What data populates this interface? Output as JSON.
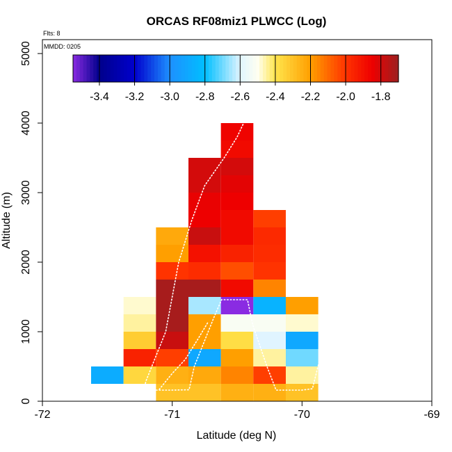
{
  "chart_data": {
    "type": "heatmap",
    "title": "ORCAS RF08miz1 PLWCC (Log)",
    "xlabel": "Latitude (deg N)",
    "ylabel": "Altitude (m)",
    "xlim": [
      -72,
      -69
    ],
    "ylim": [
      0,
      5200
    ],
    "xticks": [
      -72,
      -71,
      -70,
      -69
    ],
    "yticks": [
      0,
      1000,
      2000,
      3000,
      4000,
      5000
    ],
    "annotations": {
      "flights": "Flts: 8",
      "date": "MMDD: 0205"
    },
    "colorbar": {
      "range": [
        -3.55,
        -1.7
      ],
      "ticks": [
        -3.4,
        -3.2,
        -3.0,
        -2.8,
        -2.6,
        -2.4,
        -2.2,
        -2.0,
        -1.8
      ],
      "tick_labels": [
        "-3.4",
        "-3.2",
        "-3.0",
        "-2.8",
        "-2.6",
        "-2.4",
        "-2.2",
        "-2.0",
        "-1.8"
      ],
      "stops": [
        {
          "v": -3.55,
          "c": "#8a2be2"
        },
        {
          "v": -3.4,
          "c": "#00008b"
        },
        {
          "v": -3.2,
          "c": "#0000cd"
        },
        {
          "v": -3.0,
          "c": "#1e90ff"
        },
        {
          "v": -2.8,
          "c": "#00bfff"
        },
        {
          "v": -2.6,
          "c": "#e0f4ff"
        },
        {
          "v": -2.5,
          "c": "#fffff0"
        },
        {
          "v": -2.4,
          "c": "#ffe54d"
        },
        {
          "v": -2.2,
          "c": "#ff9f00"
        },
        {
          "v": -2.0,
          "c": "#ff3300"
        },
        {
          "v": -1.85,
          "c": "#ee0000"
        },
        {
          "v": -1.7,
          "c": "#9c2020"
        }
      ]
    },
    "cell_width_deg": 0.25,
    "cell_height_m": 250,
    "cells": [
      {
        "lat": -71.5,
        "alt": 250,
        "v": -2.88
      },
      {
        "lat": -71.25,
        "alt": 250,
        "v": -2.36
      },
      {
        "lat": -71.25,
        "alt": 500,
        "v": -1.95
      },
      {
        "lat": -71.25,
        "alt": 750,
        "v": -2.33
      },
      {
        "lat": -71.25,
        "alt": 1000,
        "v": -2.45
      },
      {
        "lat": -71.25,
        "alt": 1250,
        "v": -2.48
      },
      {
        "lat": -71.0,
        "alt": 0,
        "v": -2.3
      },
      {
        "lat": -71.0,
        "alt": 250,
        "v": -2.25
      },
      {
        "lat": -71.0,
        "alt": 500,
        "v": -2.02
      },
      {
        "lat": -71.0,
        "alt": 750,
        "v": -1.78
      },
      {
        "lat": -71.0,
        "alt": 1000,
        "v": -1.72
      },
      {
        "lat": -71.0,
        "alt": 1250,
        "v": -1.72
      },
      {
        "lat": -71.0,
        "alt": 1500,
        "v": -1.72
      },
      {
        "lat": -71.0,
        "alt": 1750,
        "v": -2.0
      },
      {
        "lat": -71.0,
        "alt": 2000,
        "v": -2.2
      },
      {
        "lat": -71.0,
        "alt": 2250,
        "v": -2.23
      },
      {
        "lat": -70.75,
        "alt": 0,
        "v": -2.3
      },
      {
        "lat": -70.75,
        "alt": 250,
        "v": -2.23
      },
      {
        "lat": -70.75,
        "alt": 500,
        "v": -2.9
      },
      {
        "lat": -70.75,
        "alt": 750,
        "v": -2.2
      },
      {
        "lat": -70.75,
        "alt": 1000,
        "v": -2.2
      },
      {
        "lat": -70.75,
        "alt": 1250,
        "v": -2.65
      },
      {
        "lat": -70.75,
        "alt": 1500,
        "v": -1.72
      },
      {
        "lat": -70.75,
        "alt": 1750,
        "v": -1.98
      },
      {
        "lat": -70.75,
        "alt": 2000,
        "v": -1.9
      },
      {
        "lat": -70.75,
        "alt": 2250,
        "v": -1.78
      },
      {
        "lat": -70.75,
        "alt": 2500,
        "v": -1.85
      },
      {
        "lat": -70.75,
        "alt": 2750,
        "v": -1.84
      },
      {
        "lat": -70.75,
        "alt": 3000,
        "v": -1.8
      },
      {
        "lat": -70.75,
        "alt": 3250,
        "v": -1.8
      },
      {
        "lat": -70.5,
        "alt": 0,
        "v": -2.25
      },
      {
        "lat": -70.5,
        "alt": 250,
        "v": -2.15
      },
      {
        "lat": -70.5,
        "alt": 500,
        "v": -2.2
      },
      {
        "lat": -70.5,
        "alt": 750,
        "v": -2.38
      },
      {
        "lat": -70.5,
        "alt": 1000,
        "v": -2.52
      },
      {
        "lat": -70.5,
        "alt": 1250,
        "v": -3.55
      },
      {
        "lat": -70.5,
        "alt": 1500,
        "v": -1.88
      },
      {
        "lat": -70.5,
        "alt": 1750,
        "v": -2.05
      },
      {
        "lat": -70.5,
        "alt": 2000,
        "v": -1.95
      },
      {
        "lat": -70.5,
        "alt": 2250,
        "v": -1.88
      },
      {
        "lat": -70.5,
        "alt": 2500,
        "v": -1.88
      },
      {
        "lat": -70.5,
        "alt": 2750,
        "v": -1.85
      },
      {
        "lat": -70.5,
        "alt": 3000,
        "v": -1.83
      },
      {
        "lat": -70.5,
        "alt": 3250,
        "v": -1.8
      },
      {
        "lat": -70.5,
        "alt": 3500,
        "v": -1.88
      },
      {
        "lat": -70.5,
        "alt": 3750,
        "v": -1.86
      },
      {
        "lat": -70.25,
        "alt": 0,
        "v": -2.25
      },
      {
        "lat": -70.25,
        "alt": 250,
        "v": -2.02
      },
      {
        "lat": -70.25,
        "alt": 500,
        "v": -2.45
      },
      {
        "lat": -70.25,
        "alt": 750,
        "v": -2.6
      },
      {
        "lat": -70.25,
        "alt": 1000,
        "v": -2.52
      },
      {
        "lat": -70.25,
        "alt": 1250,
        "v": -2.85
      },
      {
        "lat": -70.25,
        "alt": 1500,
        "v": -2.15
      },
      {
        "lat": -70.25,
        "alt": 1750,
        "v": -2.0
      },
      {
        "lat": -70.25,
        "alt": 2000,
        "v": -1.98
      },
      {
        "lat": -70.25,
        "alt": 2250,
        "v": -1.97
      },
      {
        "lat": -70.25,
        "alt": 2500,
        "v": -2.02
      },
      {
        "lat": -70.0,
        "alt": 0,
        "v": -2.3
      },
      {
        "lat": -70.0,
        "alt": 250,
        "v": -2.45
      },
      {
        "lat": -70.0,
        "alt": 500,
        "v": -2.7
      },
      {
        "lat": -70.0,
        "alt": 750,
        "v": -2.9
      },
      {
        "lat": -70.0,
        "alt": 1000,
        "v": -2.48
      },
      {
        "lat": -70.0,
        "alt": 1250,
        "v": -2.2
      }
    ],
    "flight_track": [
      [
        -71.22,
        160
      ],
      [
        -71.0,
        160
      ],
      [
        -70.87,
        165
      ],
      [
        -70.83,
        500
      ],
      [
        -70.68,
        1200
      ],
      [
        -70.62,
        1460
      ],
      [
        -70.42,
        1460
      ],
      [
        -70.38,
        1100
      ],
      [
        -70.27,
        500
      ],
      [
        -70.2,
        160
      ],
      [
        -70.0,
        160
      ],
      [
        -69.92,
        180
      ],
      [
        -69.85,
        700
      ],
      [
        -69.78,
        1450
      ]
    ],
    "flight_track_2": [
      [
        -71.22,
        170
      ],
      [
        -71.2,
        300
      ],
      [
        -71.05,
        1000
      ],
      [
        -70.95,
        2000
      ],
      [
        -70.85,
        2600
      ],
      [
        -70.75,
        3100
      ],
      [
        -70.6,
        3500
      ],
      [
        -70.5,
        3800
      ],
      [
        -70.45,
        4000
      ]
    ],
    "flight_track_3": [
      [
        -71.1,
        170
      ],
      [
        -71.0,
        400
      ],
      [
        -70.9,
        600
      ],
      [
        -70.8,
        900
      ],
      [
        -70.72,
        1150
      ]
    ]
  }
}
